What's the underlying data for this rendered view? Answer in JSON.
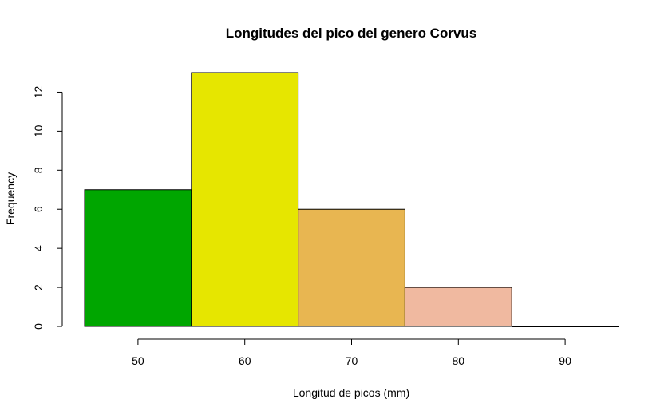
{
  "chart_data": {
    "type": "bar",
    "subtype": "histogram",
    "title": "Longitudes del pico del genero Corvus",
    "xlabel": "Longitud de picos (mm)",
    "ylabel": "Frequency",
    "bins": [
      {
        "from": 45,
        "to": 55,
        "count": 7,
        "color": "#00a600"
      },
      {
        "from": 55,
        "to": 65,
        "count": 13,
        "color": "#e6e600"
      },
      {
        "from": 65,
        "to": 75,
        "count": 6,
        "color": "#e8b651"
      },
      {
        "from": 75,
        "to": 85,
        "count": 2,
        "color": "#f0b9a0"
      },
      {
        "from": 85,
        "to": 95,
        "count": 0,
        "color": "#f2f2f2"
      }
    ],
    "xticks": [
      50,
      60,
      70,
      80,
      90
    ],
    "yticks": [
      0,
      2,
      4,
      6,
      8,
      10,
      12
    ],
    "xlim": [
      45,
      95
    ],
    "ylim": [
      0,
      13
    ],
    "grid": false,
    "legend": "none"
  }
}
